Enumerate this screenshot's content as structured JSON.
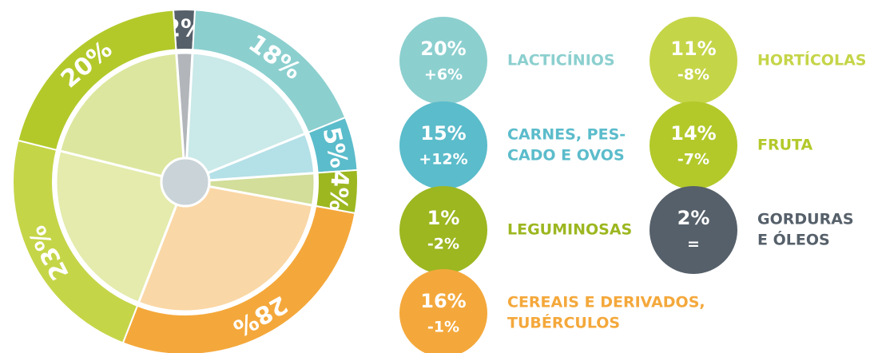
{
  "chart_data": {
    "type": "donut",
    "values": [
      2,
      18,
      5,
      4,
      28,
      23,
      20
    ],
    "value_labels": [
      "2%",
      "18%",
      "5%",
      "4%",
      "28%",
      "23%",
      "20%"
    ],
    "colors": [
      "#56606a",
      "#8ccfcf",
      "#5bbccb",
      "#9cb720",
      "#f4a83b",
      "#c5d548",
      "#b3c92a"
    ]
  },
  "items": [
    {
      "percent": "20%",
      "change": "+6%",
      "label": [
        "LACTICÍNIOS"
      ],
      "color": "#8ccfcf"
    },
    {
      "percent": "15%",
      "change": "+12%",
      "label": [
        "CARNES, PES-",
        "CADO E OVOS"
      ],
      "color": "#5bbccb"
    },
    {
      "percent": "1%",
      "change": "-2%",
      "label": [
        "LEGUMINOSAS"
      ],
      "color": "#9cb720"
    },
    {
      "percent": "16%",
      "change": "-1%",
      "label": [
        "CEREAIS E DERIVADOS,",
        "TUBÉRCULOS"
      ],
      "color": "#f4a83b"
    },
    {
      "percent": "11%",
      "change": "-8%",
      "label": [
        "HORTÍCOLAS"
      ],
      "color": "#c5d548"
    },
    {
      "percent": "14%",
      "change": "-7%",
      "label": [
        "FRUTA"
      ],
      "color": "#b3c92a"
    },
    {
      "percent": "2%",
      "change": "=",
      "label": [
        "GORDURAS",
        "E ÓLEOS"
      ],
      "color": "#56606a"
    }
  ]
}
